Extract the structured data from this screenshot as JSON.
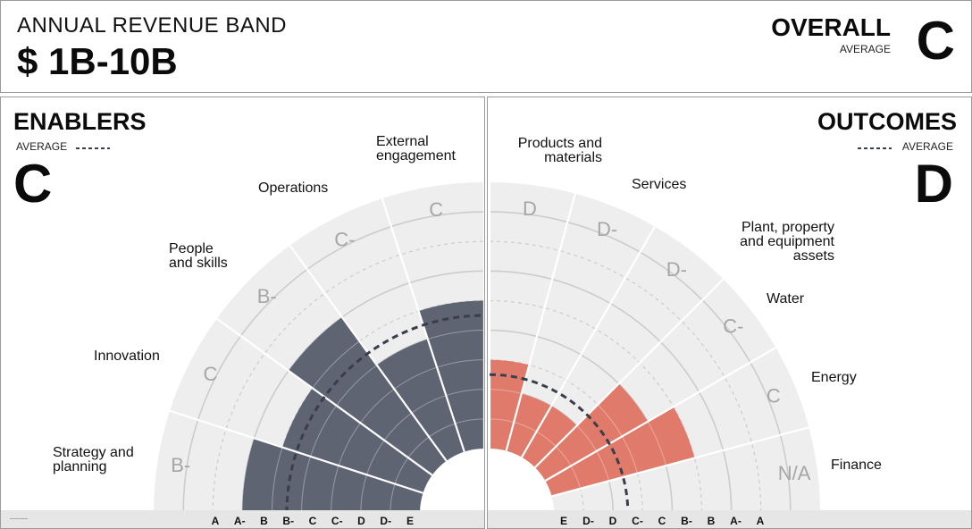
{
  "header": {
    "band_label": "ANNUAL REVENUE BAND",
    "band_value": "$ 1B-10B",
    "overall_title": "OVERALL",
    "overall_average_label": "AVERAGE",
    "overall_grade": "C"
  },
  "enablers": {
    "title": "ENABLERS",
    "average_label": "AVERAGE",
    "grade": "C"
  },
  "outcomes": {
    "title": "OUTCOMES",
    "average_label": "AVERAGE",
    "grade": "D"
  },
  "colors": {
    "enablers_bar": "#5f6473",
    "outcomes_bar": "#e07a6a",
    "wedge_bg": "#eeeeee",
    "grid": "#cccccc",
    "average_line": "#3a3d4a",
    "grade_text": "#a6a6a6",
    "footer_bg": "#e6e6e6"
  },
  "chart_data": [
    {
      "type": "radial-bar",
      "title": "ENABLERS",
      "grade_scale": [
        "E",
        "D-",
        "D",
        "C-",
        "C",
        "B-",
        "B",
        "A-",
        "A"
      ],
      "axis_tick_labels": [
        "A",
        "A-",
        "B",
        "B-",
        "C",
        "C-",
        "D",
        "D-",
        "E"
      ],
      "average": "C",
      "categories": [
        {
          "name": "Strategy and planning",
          "grade": "B-",
          "label_lines": [
            "Strategy and",
            "planning"
          ]
        },
        {
          "name": "Innovation",
          "grade": "C",
          "label_lines": [
            "Innovation"
          ]
        },
        {
          "name": "People and skills",
          "grade": "B-",
          "label_lines": [
            "People",
            "and skills"
          ]
        },
        {
          "name": "Operations",
          "grade": "C-",
          "label_lines": [
            "Operations"
          ]
        },
        {
          "name": "External engagement",
          "grade": "C",
          "label_lines": [
            "External",
            "engagement"
          ]
        }
      ]
    },
    {
      "type": "radial-bar",
      "title": "OUTCOMES",
      "grade_scale": [
        "E",
        "D-",
        "D",
        "C-",
        "C",
        "B-",
        "B",
        "A-",
        "A"
      ],
      "axis_tick_labels": [
        "E",
        "D-",
        "D",
        "C-",
        "C",
        "B-",
        "B",
        "A-",
        "A"
      ],
      "average": "D",
      "categories": [
        {
          "name": "Products and materials",
          "grade": "D",
          "label_lines": [
            "Products and",
            "materials"
          ]
        },
        {
          "name": "Services",
          "grade": "D-",
          "label_lines": [
            "Services"
          ]
        },
        {
          "name": "Plant, property and equipment assets",
          "grade": "D-",
          "label_lines": [
            "Plant, property",
            "and equipment",
            "assets"
          ]
        },
        {
          "name": "Water",
          "grade": "C-",
          "label_lines": [
            "Water"
          ]
        },
        {
          "name": "Energy",
          "grade": "C",
          "label_lines": [
            "Energy"
          ]
        },
        {
          "name": "Finance",
          "grade": "N/A",
          "label_lines": [
            "Finance"
          ]
        }
      ]
    }
  ]
}
